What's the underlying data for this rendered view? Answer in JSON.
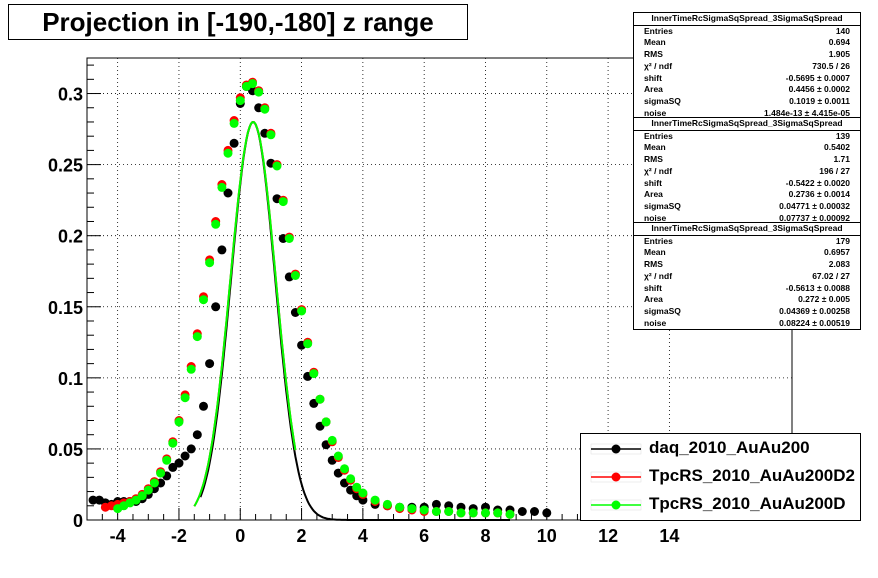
{
  "title": "Projection in [-190,-180] z range",
  "chart_data": {
    "type": "scatter",
    "xlim": [
      -5,
      18
    ],
    "ylim": [
      0,
      0.325
    ],
    "x_ticks": [
      -4,
      -2,
      0,
      2,
      4,
      6,
      8,
      10,
      12,
      14
    ],
    "x_tick_labels": [
      "-4",
      "-2",
      "0",
      "2",
      "4",
      "6",
      "8",
      "10",
      "12",
      "14"
    ],
    "y_ticks": [
      0,
      0.05,
      0.1,
      0.15,
      0.2,
      0.25,
      0.3
    ],
    "y_tick_labels": [
      "0",
      "0.05",
      "0.1",
      "0.15",
      "0.2",
      "0.25",
      "0.3"
    ],
    "grid": true,
    "legend_position": "bottom-right",
    "series": [
      {
        "name": "daq_2010_AuAu200",
        "color": "#000000",
        "points": [
          [
            -4.8,
            0.014
          ],
          [
            -4.6,
            0.014
          ],
          [
            -4.4,
            0.012
          ],
          [
            -4.2,
            0.011
          ],
          [
            -4.0,
            0.013
          ],
          [
            -3.8,
            0.013
          ],
          [
            -3.6,
            0.013
          ],
          [
            -3.4,
            0.013
          ],
          [
            -3.2,
            0.015
          ],
          [
            -3.0,
            0.018
          ],
          [
            -2.8,
            0.022
          ],
          [
            -2.6,
            0.026
          ],
          [
            -2.4,
            0.031
          ],
          [
            -2.2,
            0.037
          ],
          [
            -2.0,
            0.04
          ],
          [
            -1.8,
            0.045
          ],
          [
            -1.6,
            0.05
          ],
          [
            -1.4,
            0.06
          ],
          [
            -1.2,
            0.08
          ],
          [
            -1.0,
            0.11
          ],
          [
            -0.8,
            0.15
          ],
          [
            -0.6,
            0.19
          ],
          [
            -0.4,
            0.23
          ],
          [
            -0.2,
            0.265
          ],
          [
            0.0,
            0.293
          ],
          [
            0.2,
            0.305
          ],
          [
            0.4,
            0.302
          ],
          [
            0.6,
            0.29
          ],
          [
            0.8,
            0.272
          ],
          [
            1.0,
            0.251
          ],
          [
            1.2,
            0.226
          ],
          [
            1.4,
            0.198
          ],
          [
            1.6,
            0.171
          ],
          [
            1.8,
            0.146
          ],
          [
            2.0,
            0.123
          ],
          [
            2.2,
            0.101
          ],
          [
            2.4,
            0.082
          ],
          [
            2.6,
            0.066
          ],
          [
            2.8,
            0.053
          ],
          [
            3.0,
            0.042
          ],
          [
            3.2,
            0.033
          ],
          [
            3.4,
            0.026
          ],
          [
            3.6,
            0.021
          ],
          [
            3.8,
            0.017
          ],
          [
            4.0,
            0.014
          ],
          [
            4.4,
            0.011
          ],
          [
            4.8,
            0.01
          ],
          [
            5.2,
            0.009
          ],
          [
            5.6,
            0.009
          ],
          [
            6.0,
            0.009
          ],
          [
            6.4,
            0.011
          ],
          [
            6.8,
            0.01
          ],
          [
            7.2,
            0.009
          ],
          [
            7.6,
            0.008
          ],
          [
            8.0,
            0.009
          ],
          [
            8.4,
            0.007
          ],
          [
            8.8,
            0.007
          ],
          [
            9.2,
            0.006
          ],
          [
            9.6,
            0.006
          ],
          [
            10.0,
            0.005
          ]
        ]
      },
      {
        "name": "TpcRS_2010_AuAu200D2",
        "color": "#ff0000",
        "points": [
          [
            -4.4,
            0.009
          ],
          [
            -4.2,
            0.01
          ],
          [
            -4.0,
            0.011
          ],
          [
            -3.8,
            0.012
          ],
          [
            -3.6,
            0.013
          ],
          [
            -3.4,
            0.015
          ],
          [
            -3.2,
            0.018
          ],
          [
            -3.0,
            0.022
          ],
          [
            -2.8,
            0.027
          ],
          [
            -2.6,
            0.034
          ],
          [
            -2.4,
            0.043
          ],
          [
            -2.2,
            0.055
          ],
          [
            -2.0,
            0.07
          ],
          [
            -1.8,
            0.088
          ],
          [
            -1.6,
            0.108
          ],
          [
            -1.4,
            0.131
          ],
          [
            -1.2,
            0.157
          ],
          [
            -1.0,
            0.183
          ],
          [
            -0.8,
            0.21
          ],
          [
            -0.6,
            0.236
          ],
          [
            -0.4,
            0.26
          ],
          [
            -0.2,
            0.281
          ],
          [
            0.0,
            0.297
          ],
          [
            0.2,
            0.306
          ],
          [
            0.4,
            0.308
          ],
          [
            0.6,
            0.302
          ],
          [
            0.8,
            0.29
          ],
          [
            1.0,
            0.272
          ],
          [
            1.2,
            0.25
          ],
          [
            1.4,
            0.225
          ],
          [
            1.6,
            0.199
          ],
          [
            1.8,
            0.173
          ],
          [
            2.0,
            0.148
          ],
          [
            2.2,
            0.125
          ],
          [
            2.4,
            0.104
          ],
          [
            2.6,
            0.085
          ],
          [
            2.8,
            0.069
          ],
          [
            3.0,
            0.055
          ],
          [
            3.2,
            0.044
          ],
          [
            3.4,
            0.035
          ],
          [
            3.6,
            0.028
          ],
          [
            3.8,
            0.022
          ],
          [
            4.0,
            0.018
          ],
          [
            4.4,
            0.013
          ],
          [
            4.8,
            0.01
          ],
          [
            5.2,
            0.008
          ],
          [
            5.6,
            0.007
          ],
          [
            6.0,
            0.006
          ],
          [
            6.4,
            0.006
          ],
          [
            6.8,
            0.006
          ],
          [
            7.2,
            0.005
          ],
          [
            7.6,
            0.005
          ],
          [
            8.0,
            0.005
          ],
          [
            8.4,
            0.005
          ],
          [
            8.8,
            0.004
          ]
        ]
      },
      {
        "name": "TpcRS_2010_AuAu200D",
        "color": "#00ff00",
        "points": [
          [
            -4.0,
            0.008
          ],
          [
            -3.8,
            0.01
          ],
          [
            -3.6,
            0.012
          ],
          [
            -3.4,
            0.014
          ],
          [
            -3.2,
            0.017
          ],
          [
            -3.0,
            0.021
          ],
          [
            -2.8,
            0.026
          ],
          [
            -2.6,
            0.033
          ],
          [
            -2.4,
            0.042
          ],
          [
            -2.2,
            0.054
          ],
          [
            -2.0,
            0.069
          ],
          [
            -1.8,
            0.086
          ],
          [
            -1.6,
            0.106
          ],
          [
            -1.4,
            0.129
          ],
          [
            -1.2,
            0.155
          ],
          [
            -1.0,
            0.181
          ],
          [
            -0.8,
            0.208
          ],
          [
            -0.6,
            0.234
          ],
          [
            -0.4,
            0.258
          ],
          [
            -0.2,
            0.279
          ],
          [
            0.0,
            0.295
          ],
          [
            0.2,
            0.305
          ],
          [
            0.4,
            0.307
          ],
          [
            0.6,
            0.301
          ],
          [
            0.8,
            0.289
          ],
          [
            1.0,
            0.271
          ],
          [
            1.2,
            0.249
          ],
          [
            1.4,
            0.224
          ],
          [
            1.6,
            0.198
          ],
          [
            1.8,
            0.172
          ],
          [
            2.0,
            0.147
          ],
          [
            2.2,
            0.124
          ],
          [
            2.4,
            0.103
          ],
          [
            2.6,
            0.085
          ],
          [
            2.8,
            0.069
          ],
          [
            3.0,
            0.056
          ],
          [
            3.2,
            0.045
          ],
          [
            3.4,
            0.036
          ],
          [
            3.6,
            0.029
          ],
          [
            3.8,
            0.023
          ],
          [
            4.0,
            0.019
          ],
          [
            4.4,
            0.014
          ],
          [
            4.8,
            0.011
          ],
          [
            5.2,
            0.009
          ],
          [
            5.6,
            0.008
          ],
          [
            6.0,
            0.007
          ],
          [
            6.4,
            0.006
          ],
          [
            6.8,
            0.006
          ],
          [
            7.2,
            0.005
          ],
          [
            7.6,
            0.005
          ],
          [
            8.0,
            0.005
          ],
          [
            8.4,
            0.005
          ],
          [
            8.8,
            0.004
          ]
        ]
      }
    ],
    "fits": [
      {
        "color": "#000000",
        "shift": 0.42,
        "sigma": 0.72,
        "peak": 0.28,
        "noise": 0.0,
        "xrange": [
          -1.3,
          8.8
        ]
      },
      {
        "color": "#ff0000",
        "shift": 0.42,
        "sigma": 0.74,
        "peak": 0.28,
        "noise": 0.0,
        "xrange": [
          -1.5,
          1.8
        ]
      },
      {
        "color": "#00ff00",
        "shift": 0.42,
        "sigma": 0.74,
        "peak": 0.28,
        "noise": 0.0,
        "xrange": [
          -1.5,
          1.8
        ]
      }
    ]
  },
  "stats_boxes": [
    {
      "title": "InnerTimeRcSigmaSqSpread_3SigmaSqSpread",
      "rows": [
        {
          "label": "Entries",
          "value": "140"
        },
        {
          "label": "Mean",
          "value": "0.694"
        },
        {
          "label": "RMS",
          "value": "1.905"
        },
        {
          "label": "χ² / ndf",
          "value": "730.5 / 26"
        },
        {
          "label": "shift",
          "value": "-0.5695 ± 0.0007"
        },
        {
          "label": "Area",
          "value": "0.4456 ± 0.0002"
        },
        {
          "label": "sigmaSQ",
          "value": "0.1019 ± 0.0011"
        },
        {
          "label": "noise",
          "value": "1.484e-13 ± 4.415e-05"
        }
      ]
    },
    {
      "title": "InnerTimeRcSigmaSqSpread_3SigmaSqSpread",
      "rows": [
        {
          "label": "Entries",
          "value": "139"
        },
        {
          "label": "Mean",
          "value": "0.5402"
        },
        {
          "label": "RMS",
          "value": "1.71"
        },
        {
          "label": "χ² / ndf",
          "value": "196 / 27"
        },
        {
          "label": "shift",
          "value": "-0.5422 ± 0.0020"
        },
        {
          "label": "Area",
          "value": "0.2736 ± 0.0014"
        },
        {
          "label": "sigmaSQ",
          "value": "0.04771 ± 0.00032"
        },
        {
          "label": "noise",
          "value": "0.07737 ± 0.00092"
        }
      ]
    },
    {
      "title": "InnerTimeRcSigmaSqSpread_3SigmaSqSpread",
      "rows": [
        {
          "label": "Entries",
          "value": "179"
        },
        {
          "label": "Mean",
          "value": "0.6957"
        },
        {
          "label": "RMS",
          "value": "2.083"
        },
        {
          "label": "χ² / ndf",
          "value": "67.02 / 27"
        },
        {
          "label": "shift",
          "value": "-0.5613 ± 0.0088"
        },
        {
          "label": "Area",
          "value": "0.272 ± 0.005"
        },
        {
          "label": "sigmaSQ",
          "value": "0.04369 ± 0.00258"
        },
        {
          "label": "noise",
          "value": "0.08224 ± 0.00519"
        }
      ]
    }
  ],
  "legend": [
    {
      "label": "daq_2010_AuAu200",
      "color": "#000000"
    },
    {
      "label": "TpcRS_2010_AuAu200D2",
      "color": "#ff0000"
    },
    {
      "label": "TpcRS_2010_AuAu200D",
      "color": "#00ff00"
    }
  ]
}
